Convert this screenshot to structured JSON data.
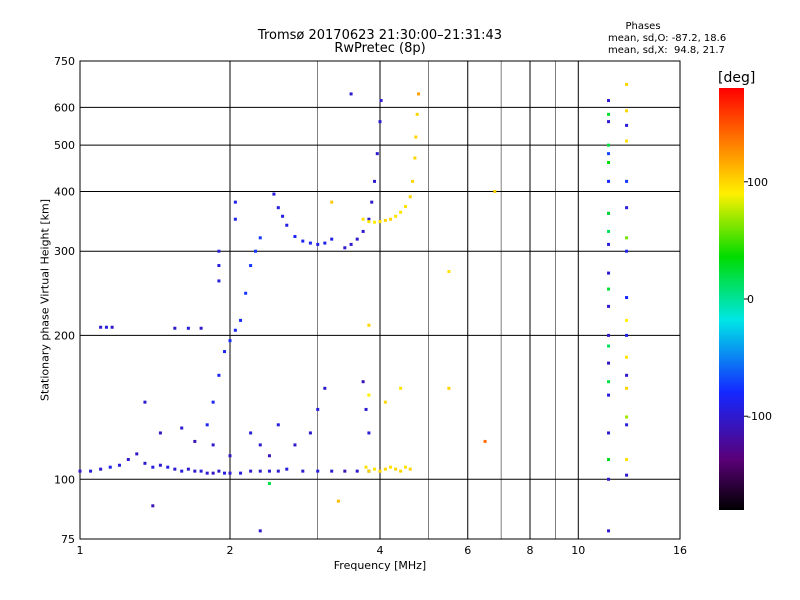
{
  "chart_data": {
    "type": "scatter",
    "title": "Tromsø 20170623 21:30:00–21:31:43",
    "subtitle": "RwPretec (8p)",
    "xlabel": "Frequency [MHz]",
    "ylabel": "Stationary phase Virtual Height [km]",
    "xscale": "log",
    "yscale": "log",
    "xlim": [
      1,
      16
    ],
    "ylim": [
      75,
      750
    ],
    "x_ticks": [
      1,
      2,
      4,
      6,
      8,
      10,
      16
    ],
    "x_tick_labels": [
      "1",
      "2",
      "4",
      "6",
      "8",
      "10",
      "16"
    ],
    "y_ticks": [
      75,
      100,
      200,
      300,
      400,
      500,
      600,
      750
    ],
    "y_tick_labels": [
      "75",
      "100",
      "200",
      "300",
      "400",
      "500",
      "600",
      "750"
    ],
    "grid": true,
    "phase_stats": {
      "heading": "Phases",
      "o_line": "mean, sd,O: -87.2, 18.6",
      "x_line": "mean, sd,X:  94.8, 21.7"
    },
    "colorbar": {
      "label": "[deg]",
      "range": [
        -180,
        180
      ],
      "ticks": [
        100,
        0,
        -100
      ],
      "tick_labels": [
        "100",
        "0",
        "-100"
      ],
      "colormap": "rainbow"
    },
    "series": [
      {
        "points": [
          [
            1.0,
            104,
            -100
          ],
          [
            1.05,
            104,
            -95
          ],
          [
            1.1,
            105,
            -100
          ],
          [
            1.15,
            106,
            -90
          ],
          [
            1.2,
            107,
            -95
          ],
          [
            1.25,
            110,
            -100
          ],
          [
            1.3,
            113,
            -105
          ],
          [
            1.35,
            108,
            -100
          ],
          [
            1.4,
            106,
            -95
          ],
          [
            1.45,
            107,
            -100
          ],
          [
            1.5,
            106,
            -90
          ],
          [
            1.55,
            105,
            -100
          ],
          [
            1.6,
            104,
            -95
          ],
          [
            1.65,
            105,
            -100
          ],
          [
            1.7,
            104,
            -100
          ],
          [
            1.75,
            104,
            -95
          ],
          [
            1.8,
            103,
            -100
          ],
          [
            1.85,
            103,
            -105
          ],
          [
            1.9,
            104,
            -100
          ],
          [
            1.95,
            103,
            -95
          ],
          [
            2.0,
            103,
            -100
          ],
          [
            2.1,
            103,
            -95
          ],
          [
            2.2,
            104,
            -100
          ],
          [
            2.3,
            104,
            -100
          ],
          [
            2.4,
            104,
            -95
          ],
          [
            2.5,
            104,
            -100
          ],
          [
            2.6,
            105,
            -95
          ],
          [
            2.8,
            104,
            -100
          ],
          [
            3.0,
            104,
            -95
          ],
          [
            3.2,
            104,
            -100
          ],
          [
            3.4,
            104,
            -110
          ],
          [
            3.6,
            104,
            -100
          ],
          [
            3.8,
            104,
            -95
          ],
          [
            1.1,
            208,
            -100
          ],
          [
            1.13,
            208,
            -95
          ],
          [
            1.16,
            208,
            -100
          ],
          [
            1.55,
            207,
            -100
          ],
          [
            1.65,
            207,
            -95
          ],
          [
            1.75,
            207,
            -100
          ],
          [
            1.8,
            130,
            -85
          ],
          [
            1.85,
            145,
            -85
          ],
          [
            1.9,
            165,
            -85
          ],
          [
            1.95,
            185,
            -85
          ],
          [
            2.0,
            195,
            -80
          ],
          [
            2.05,
            205,
            -85
          ],
          [
            2.1,
            215,
            -80
          ],
          [
            2.15,
            245,
            -75
          ],
          [
            2.2,
            280,
            -75
          ],
          [
            2.25,
            300,
            -75
          ],
          [
            2.3,
            320,
            -75
          ],
          [
            1.9,
            260,
            -95
          ],
          [
            1.9,
            280,
            -95
          ],
          [
            1.9,
            300,
            -95
          ],
          [
            2.05,
            350,
            -90
          ],
          [
            2.05,
            380,
            -90
          ],
          [
            2.45,
            395,
            -95
          ],
          [
            2.5,
            370,
            -95
          ],
          [
            2.55,
            355,
            -90
          ],
          [
            2.6,
            340,
            -90
          ],
          [
            2.7,
            322,
            -85
          ],
          [
            2.8,
            315,
            -85
          ],
          [
            2.9,
            312,
            -85
          ],
          [
            3.0,
            310,
            -90
          ],
          [
            3.1,
            312,
            -90
          ],
          [
            3.2,
            318,
            -90
          ],
          [
            3.4,
            305,
            -100
          ],
          [
            3.5,
            310,
            -100
          ],
          [
            3.6,
            318,
            -100
          ],
          [
            3.7,
            330,
            -100
          ],
          [
            3.8,
            350,
            -100
          ],
          [
            3.85,
            380,
            -100
          ],
          [
            3.9,
            420,
            -100
          ],
          [
            3.95,
            480,
            -100
          ],
          [
            4.0,
            560,
            -100
          ],
          [
            4.02,
            620,
            -100
          ],
          [
            3.7,
            160,
            -110
          ],
          [
            3.75,
            140,
            -100
          ],
          [
            3.8,
            125,
            -95
          ],
          [
            3.1,
            155,
            -100
          ],
          [
            3.0,
            140,
            -95
          ],
          [
            2.9,
            125,
            -100
          ],
          [
            2.7,
            118,
            -100
          ],
          [
            2.5,
            130,
            -95
          ],
          [
            2.3,
            118,
            -100
          ],
          [
            2.2,
            125,
            -95
          ],
          [
            1.45,
            125,
            -105
          ],
          [
            1.6,
            128,
            -100
          ],
          [
            1.7,
            120,
            -110
          ],
          [
            1.85,
            118,
            -100
          ],
          [
            2.0,
            112,
            -105
          ],
          [
            1.35,
            145,
            -100
          ],
          [
            2.4,
            112,
            -110
          ],
          [
            3.5,
            640,
            -100
          ],
          [
            1.4,
            88,
            -110
          ],
          [
            2.3,
            78,
            -100
          ],
          [
            11.5,
            78,
            -100
          ],
          [
            11.5,
            100,
            -100
          ],
          [
            11.5,
            125,
            -100
          ],
          [
            11.5,
            150,
            -95
          ],
          [
            11.5,
            175,
            -105
          ],
          [
            11.5,
            200,
            -100
          ],
          [
            11.5,
            230,
            -100
          ],
          [
            11.5,
            270,
            -100
          ],
          [
            11.5,
            310,
            -95
          ],
          [
            11.5,
            360,
            -90
          ],
          [
            11.5,
            420,
            -80
          ],
          [
            11.5,
            480,
            -70
          ],
          [
            11.5,
            560,
            -100
          ],
          [
            11.5,
            620,
            -100
          ],
          [
            12.5,
            102,
            -100
          ],
          [
            12.5,
            130,
            -95
          ],
          [
            12.5,
            165,
            -100
          ],
          [
            12.5,
            200,
            -90
          ],
          [
            12.5,
            240,
            -80
          ],
          [
            12.5,
            300,
            -85
          ],
          [
            12.5,
            370,
            -95
          ],
          [
            12.5,
            420,
            -75
          ],
          [
            12.5,
            550,
            -95
          ]
        ]
      },
      {
        "points": [
          [
            3.7,
            350,
            95
          ],
          [
            3.8,
            346,
            95
          ],
          [
            3.9,
            345,
            90
          ],
          [
            4.0,
            346,
            95
          ],
          [
            4.1,
            348,
            100
          ],
          [
            4.2,
            350,
            100
          ],
          [
            4.3,
            355,
            95
          ],
          [
            4.4,
            362,
            95
          ],
          [
            4.5,
            372,
            95
          ],
          [
            4.6,
            390,
            100
          ],
          [
            4.65,
            420,
            100
          ],
          [
            4.7,
            470,
            100
          ],
          [
            4.72,
            520,
            100
          ],
          [
            4.75,
            580,
            100
          ],
          [
            4.78,
            640,
            120
          ],
          [
            3.75,
            106,
            95
          ],
          [
            3.8,
            104,
            100
          ],
          [
            3.9,
            105,
            95
          ],
          [
            4.0,
            104,
            100
          ],
          [
            4.1,
            105,
            100
          ],
          [
            4.2,
            106,
            95
          ],
          [
            4.3,
            105,
            100
          ],
          [
            4.4,
            104,
            100
          ],
          [
            4.5,
            106,
            95
          ],
          [
            4.6,
            105,
            100
          ],
          [
            3.8,
            150,
            90
          ],
          [
            4.1,
            145,
            100
          ],
          [
            4.4,
            155,
            95
          ],
          [
            5.5,
            155,
            100
          ],
          [
            5.5,
            272,
            95
          ],
          [
            6.8,
            400,
            100
          ],
          [
            6.5,
            120,
            140
          ],
          [
            3.3,
            90,
            110
          ],
          [
            3.8,
            210,
            100
          ],
          [
            2.4,
            98,
            20
          ],
          [
            3.2,
            380,
            105
          ],
          [
            11.5,
            110,
            30
          ],
          [
            11.5,
            160,
            20
          ],
          [
            11.5,
            190,
            15
          ],
          [
            11.5,
            250,
            25
          ],
          [
            11.5,
            330,
            15
          ],
          [
            11.5,
            360,
            25
          ],
          [
            11.5,
            460,
            35
          ],
          [
            11.5,
            500,
            20
          ],
          [
            11.5,
            580,
            25
          ],
          [
            12.5,
            110,
            95
          ],
          [
            12.5,
            135,
            70
          ],
          [
            12.5,
            155,
            100
          ],
          [
            12.5,
            180,
            95
          ],
          [
            12.5,
            215,
            90
          ],
          [
            12.5,
            320,
            60
          ],
          [
            12.5,
            510,
            95
          ],
          [
            12.5,
            590,
            100
          ],
          [
            12.5,
            670,
            100
          ]
        ]
      }
    ]
  }
}
